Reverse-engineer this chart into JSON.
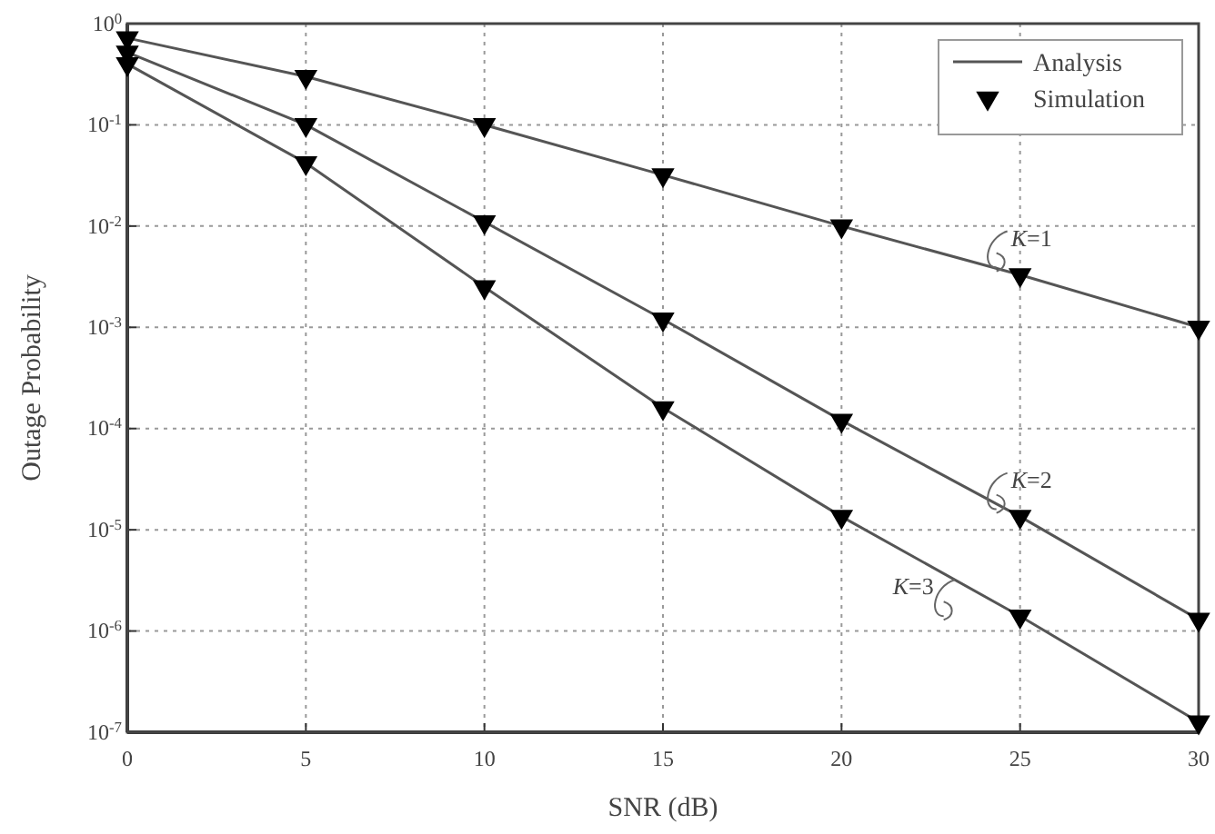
{
  "chart_data": {
    "type": "line",
    "xlabel": "SNR (dB)",
    "ylabel": "Outage Probability",
    "x": [
      0,
      5,
      10,
      15,
      20,
      25,
      30
    ],
    "xlim": [
      0,
      30
    ],
    "xticks": [
      0,
      5,
      10,
      15,
      20,
      25,
      30
    ],
    "ylim": [
      1e-07,
      1
    ],
    "log": "y",
    "yticks": [
      {
        "value": 1,
        "label": "10$^{0}$"
      },
      {
        "value": 0.1,
        "label": "10$^{-1}$"
      },
      {
        "value": 0.01,
        "label": "10$^{-2}$"
      },
      {
        "value": 0.001,
        "label": "10$^{-3}$"
      },
      {
        "value": 0.0001,
        "label": "10$^{-4}$"
      },
      {
        "value": 1e-05,
        "label": "10$^{-5}$"
      },
      {
        "value": 1e-06,
        "label": "10$^{-6}$"
      },
      {
        "value": 1e-07,
        "label": "10$^{-7}$"
      }
    ],
    "grid": true,
    "legend": "top right",
    "series": [
      {
        "name": "Analysis",
        "type": "line",
        "color": "#555555",
        "values": [
          0.72,
          0.3,
          0.1,
          0.032,
          0.01,
          0.0033,
          0.001
        ]
      },
      {
        "type": "line",
        "color": "#555555",
        "values": [
          0.52,
          0.1,
          0.011,
          0.0012,
          0.00012,
          1.35e-05,
          1.3e-06
        ]
      },
      {
        "type": "line",
        "color": "#555555",
        "values": [
          0.4,
          0.042,
          0.0025,
          0.00016,
          1.35e-05,
          1.4e-06,
          1.26e-07
        ]
      },
      {
        "name": "Simulation",
        "type": "scatter",
        "marker": "triangle",
        "color": "#000000",
        "values": [
          0.72,
          0.3,
          0.1,
          0.032,
          0.01,
          0.0033,
          0.001
        ]
      },
      {
        "type": "scatter",
        "marker": "triangle",
        "color": "#000000",
        "values": [
          0.52,
          0.1,
          0.011,
          0.0012,
          0.00012,
          1.35e-05,
          1.3e-06
        ]
      },
      {
        "type": "scatter",
        "marker": "triangle",
        "color": "#000000",
        "values": [
          0.4,
          0.042,
          0.0025,
          0.00016,
          1.35e-05,
          1.4e-06,
          1.26e-07
        ]
      }
    ],
    "annotations": [
      "K=1",
      "K=2",
      "K=3"
    ]
  }
}
